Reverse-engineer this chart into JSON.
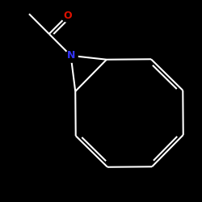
{
  "bg_color": "#000000",
  "bond_color": "#ffffff",
  "N_color": "#3333ff",
  "O_color": "#dd1100",
  "lw": 1.5,
  "N_label": "N",
  "O_label": "O",
  "fig_w": 2.5,
  "fig_h": 2.5,
  "dpi": 100
}
